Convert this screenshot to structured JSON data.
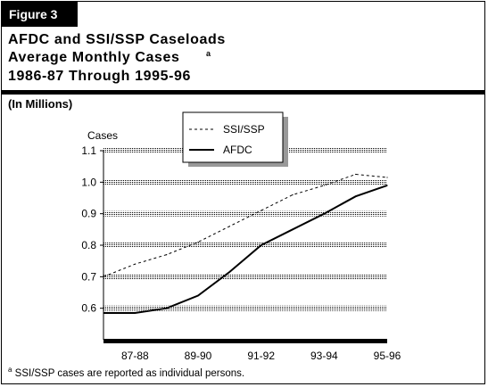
{
  "figure_label": "Figure 3",
  "title_line1": "AFDC and SSI/SSP Caseloads",
  "title_line2": "Average Monthly Cases",
  "title_superscript": "a",
  "title_line3": "1986-87 Through 1995-96",
  "units_note": "(In Millions)",
  "footnote_marker": "a",
  "footnote_text": "SSI/SSP cases are reported as individual persons.",
  "chart_data": {
    "type": "line",
    "ylabel": "Cases",
    "ylim": [
      0.5,
      1.1
    ],
    "yticks": [
      "0.6",
      "0.7",
      "0.8",
      "0.9",
      "1.0",
      "1.1"
    ],
    "xticks": [
      "87-88",
      "89-90",
      "91-92",
      "93-94",
      "95-96"
    ],
    "x": [
      1986.5,
      1987.5,
      1988.5,
      1989.5,
      1990.5,
      1991.5,
      1992.5,
      1993.5,
      1994.5,
      1995.5
    ],
    "legend_position": "top-center",
    "grid": "horizontal dotted bands",
    "series": [
      {
        "name": "SSI/SSP",
        "style": "dashed",
        "values": [
          0.7,
          0.74,
          0.77,
          0.81,
          0.86,
          0.91,
          0.96,
          0.99,
          1.025,
          1.015
        ]
      },
      {
        "name": "AFDC",
        "style": "solid",
        "values": [
          0.585,
          0.585,
          0.6,
          0.64,
          0.715,
          0.8,
          0.85,
          0.9,
          0.955,
          0.99
        ]
      }
    ]
  }
}
